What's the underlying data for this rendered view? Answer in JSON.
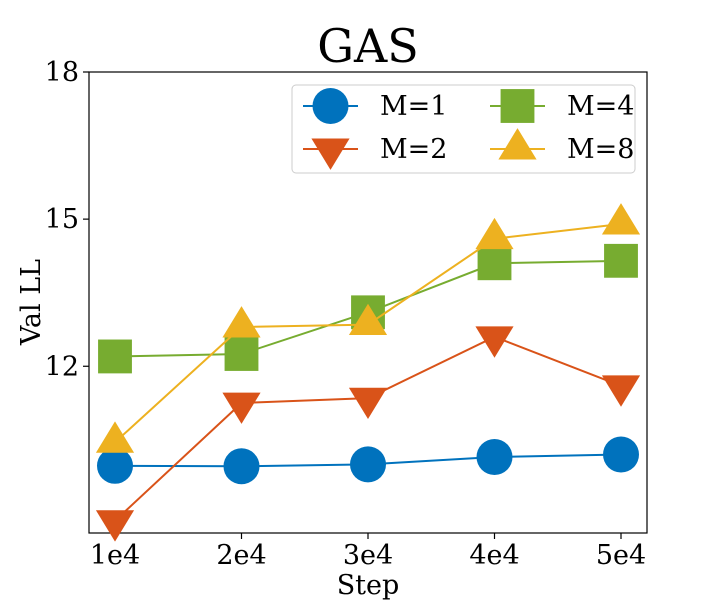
{
  "chart_data": {
    "type": "line",
    "title": "GAS",
    "xlabel": "Step",
    "ylabel": "Val LL",
    "categories": [
      "1e4",
      "2e4",
      "3e4",
      "4e4",
      "5e4"
    ],
    "ylim": [
      8.6,
      18
    ],
    "yticks": [
      {
        "value": 12,
        "label": "12"
      },
      {
        "value": 15,
        "label": "15"
      },
      {
        "value": 18,
        "label": "18"
      }
    ],
    "grid": false,
    "legend_position": "top-right",
    "series": [
      {
        "name": "M=1",
        "color": "#0072BD",
        "marker": "circle",
        "values": [
          9.97,
          9.96,
          10.0,
          10.15,
          10.2
        ]
      },
      {
        "name": "M=2",
        "color": "#D95319",
        "marker": "triangle-down",
        "values": [
          8.85,
          11.25,
          11.35,
          12.6,
          11.6
        ]
      },
      {
        "name": "M=4",
        "color": "#77AC30",
        "marker": "square",
        "values": [
          12.2,
          12.25,
          13.1,
          14.1,
          14.15
        ]
      },
      {
        "name": "M=8",
        "color": "#EDB120",
        "marker": "triangle-up",
        "values": [
          10.45,
          12.8,
          12.85,
          14.6,
          14.9
        ]
      }
    ]
  }
}
